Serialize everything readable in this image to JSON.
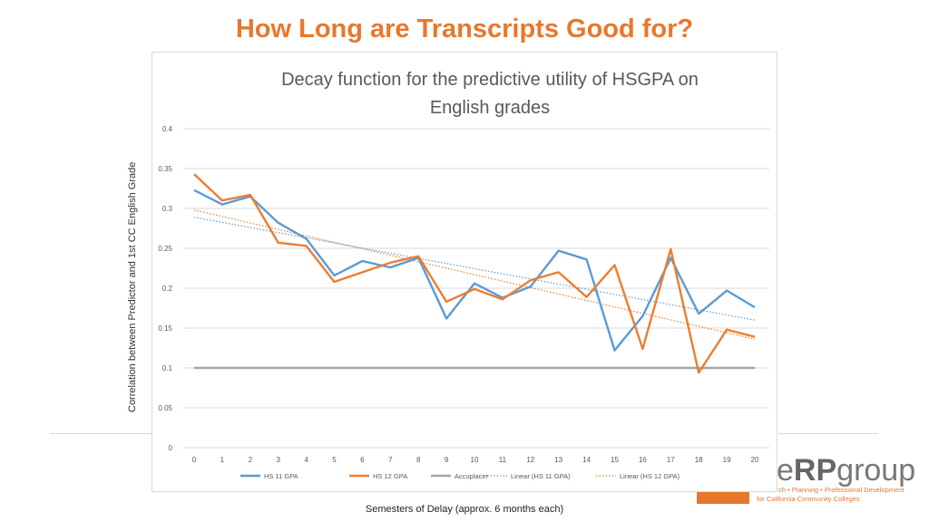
{
  "slide": {
    "title": "How Long are Transcripts Good for?"
  },
  "logo": {
    "text_prefix": "e",
    "text_bold": "RP",
    "text_suffix": "group",
    "tagline_1": "Research • Planning • Professional Development",
    "tagline_2": "for California Community Colleges"
  },
  "chart_data": {
    "type": "line",
    "title": "Decay function for the predictive utility of HSGPA on English grades",
    "title_lines": [
      "Decay function for the predictive utility of HSGPA on",
      "English grades"
    ],
    "xlabel": "Semesters of Delay (approx. 6 months each)",
    "ylabel": "Correlation between Predictor and 1st CC English Grade",
    "x": [
      0,
      1,
      2,
      3,
      4,
      5,
      6,
      7,
      8,
      9,
      10,
      11,
      12,
      13,
      14,
      15,
      16,
      17,
      18,
      19,
      20
    ],
    "ylim": [
      0,
      0.4
    ],
    "yticks": [
      0,
      0.05,
      0.1,
      0.15,
      0.2,
      0.25,
      0.3,
      0.35,
      0.4
    ],
    "ytick_labels": [
      "0",
      "0.05",
      "0.1",
      "0.15",
      "0.2",
      "0.25",
      "0.3",
      "0.35",
      "0.4"
    ],
    "grid": true,
    "legend_position": "bottom",
    "series": [
      {
        "name": "HS 11 GPA",
        "color": "#5B9BD5",
        "style": "solid",
        "values": [
          0.323,
          0.305,
          0.315,
          0.282,
          0.262,
          0.216,
          0.234,
          0.226,
          0.238,
          0.162,
          0.206,
          0.188,
          0.202,
          0.247,
          0.236,
          0.122,
          0.165,
          0.238,
          0.168,
          0.197,
          0.176
        ]
      },
      {
        "name": "HS 12 GPA",
        "color": "#ED7D31",
        "style": "solid",
        "values": [
          0.343,
          0.31,
          0.317,
          0.257,
          0.253,
          0.208,
          0.22,
          0.232,
          0.24,
          0.183,
          0.199,
          0.186,
          0.21,
          0.22,
          0.189,
          0.229,
          0.124,
          0.249,
          0.094,
          0.148,
          0.139
        ]
      },
      {
        "name": "Accuplacer",
        "color": "#A5A5A5",
        "style": "solid",
        "values": [
          0.1,
          0.1,
          0.1,
          0.1,
          0.1,
          0.1,
          0.1,
          0.1,
          0.1,
          0.1,
          0.1,
          0.1,
          0.1,
          0.1,
          0.1,
          0.1,
          0.1,
          0.1,
          0.1,
          0.1,
          0.1
        ]
      },
      {
        "name": "Linear (HS 11 GPA)",
        "color": "#5B9BD5",
        "style": "dotted",
        "start": 0.289,
        "end": 0.16
      },
      {
        "name": "Linear (HS 12 GPA)",
        "color": "#ED7D31",
        "style": "dotted",
        "start": 0.298,
        "end": 0.136
      }
    ]
  }
}
